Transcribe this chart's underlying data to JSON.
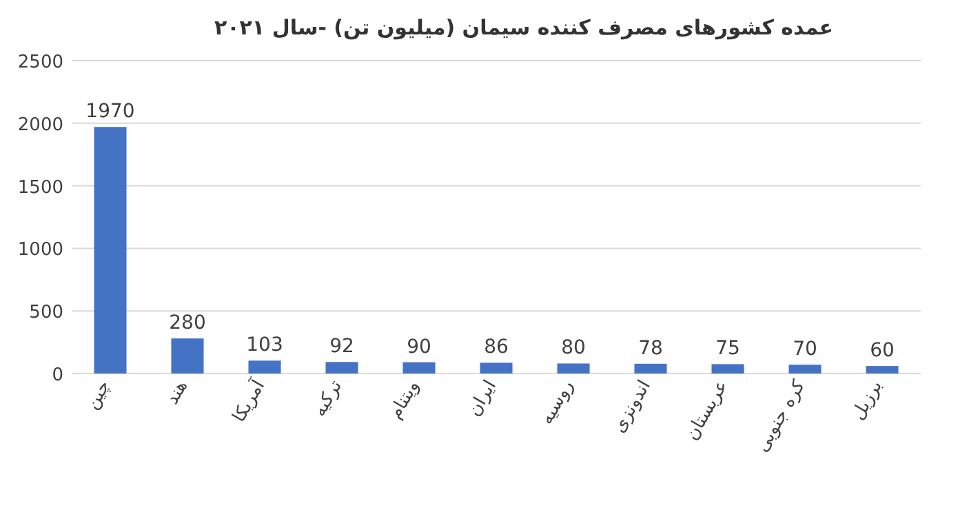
{
  "chart_data": {
    "type": "bar",
    "title": "عمده کشورهای مصرف کننده سیمان (میلیون تن) -سال ۲۰۲۱",
    "categories": [
      "چین",
      "هند",
      "آمریکا",
      "ترکیه",
      "ویتنام",
      "ایران",
      "روسیه",
      "اندونزی",
      "عربستان",
      "کره جنوبی",
      "برزیل"
    ],
    "values": [
      1970,
      280,
      103,
      92,
      90,
      86,
      80,
      78,
      75,
      70,
      60
    ],
    "color": "#4472c4",
    "ylim": [
      0,
      2500
    ],
    "yticks": [
      0,
      500,
      1000,
      1500,
      2000,
      2500
    ],
    "grid": "y",
    "data_labels": true
  }
}
